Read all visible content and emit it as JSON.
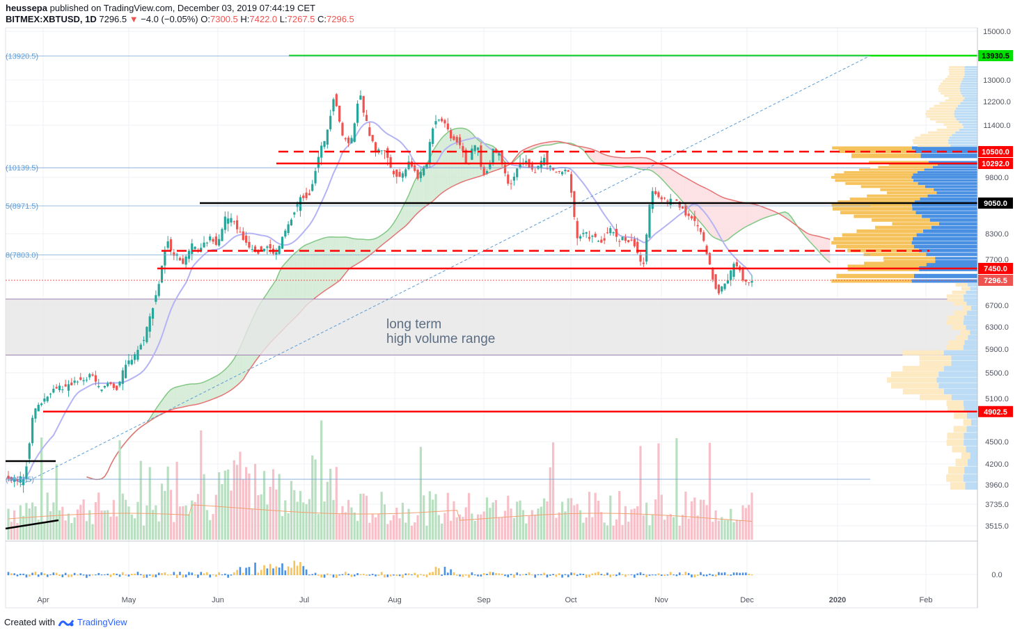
{
  "header": {
    "author": "heussepa",
    "published": "published on TradingView.com, December 03, 2019 07:44:19 CET",
    "symbol": "BITMEX:XBTUSD, 1D",
    "last": "7296.5",
    "arrow": "▼",
    "change": "−4.0 (−0.05%)",
    "o_label": "O:",
    "o": "7300.5",
    "h_label": "H:",
    "h": "7422.0",
    "l_label": "L:",
    "l": "7267.5",
    "c_label": "C:",
    "c": "7296.5"
  },
  "footer": {
    "created": "Created with",
    "brand": "TradingView",
    "logo": "tradingview-logo-icon"
  },
  "annotation": {
    "line1": "long term",
    "line2": "high volume range"
  },
  "colors": {
    "up": "#26a69a",
    "down": "#ef5350",
    "green_line": "#00e000",
    "red_line": "#ff0000",
    "cloud_green": "#a5d6a7",
    "cloud_red": "#ef9a9a",
    "kijun": "#b0b0f0",
    "vol_up": "#a5d6a7",
    "vol_down": "#f8bbd0",
    "profile_blue": "#4a90e2",
    "profile_orange": "#f6c25b"
  },
  "chart_data": {
    "type": "candlestick",
    "price_axis": [
      "15000.0",
      "13000.0",
      "12200.0",
      "11400.0",
      "9800.0",
      "8300.0",
      "7700.0",
      "6700.0",
      "6300.0",
      "5900.0",
      "5500.0",
      "5100.0",
      "4500.0",
      "4200.0",
      "3960.0",
      "3735.0",
      "3515.0"
    ],
    "oscillator_axis": "0.0",
    "time_axis": [
      "Apr",
      "May",
      "Jun",
      "Jul",
      "Aug",
      "Sep",
      "Oct",
      "Nov",
      "Dec",
      "2020",
      "Feb"
    ],
    "left_labels": [
      "(13920.5)",
      "(10139.5)",
      "5(8971.5)",
      "8(7803.0)",
      "(4023.5)"
    ],
    "levels": [
      {
        "value": "13930.5",
        "color": "#00e000"
      },
      {
        "value": "10500.0",
        "color": "#ff0000",
        "style": "dashed"
      },
      {
        "value": "10292.0",
        "color": "#ff0000"
      },
      {
        "value": "9050.0",
        "color": "#000000"
      },
      {
        "value": "7450.0",
        "color": "#ff0000"
      },
      {
        "value": "7296.5",
        "color": "#ef5350",
        "style": "last-price"
      },
      {
        "value": "4902.5",
        "color": "#ff0000"
      }
    ],
    "dashed_level_7900": "7900",
    "volume_range": [
      5800,
      6850
    ],
    "path": [
      4050,
      3990,
      4080,
      4900,
      5050,
      5200,
      5300,
      5250,
      5400,
      5350,
      5500,
      5200,
      5350,
      5250,
      5600,
      5800,
      6000,
      6500,
      7200,
      8100,
      7800,
      7600,
      8000,
      7900,
      8200,
      8100,
      8700,
      8600,
      8200,
      8000,
      7900,
      8000,
      7800,
      8300,
      8700,
      9200,
      9300,
      10300,
      11000,
      12500,
      11000,
      10800,
      12500,
      11300,
      10500,
      10600,
      10000,
      9800,
      10400,
      9800,
      10200,
      11600,
      11600,
      11000,
      10800,
      10200,
      10800,
      9800,
      10600,
      10400,
      9500,
      10200,
      10300,
      10000,
      10400,
      10100,
      9900,
      10100,
      8200,
      8300,
      8200,
      8100,
      8400,
      8200,
      8150,
      8050,
      7450,
      9500,
      9200,
      9100,
      9100,
      8800,
      8600,
      8300,
      7500,
      7000,
      7300,
      7600,
      7300,
      7296
    ]
  }
}
